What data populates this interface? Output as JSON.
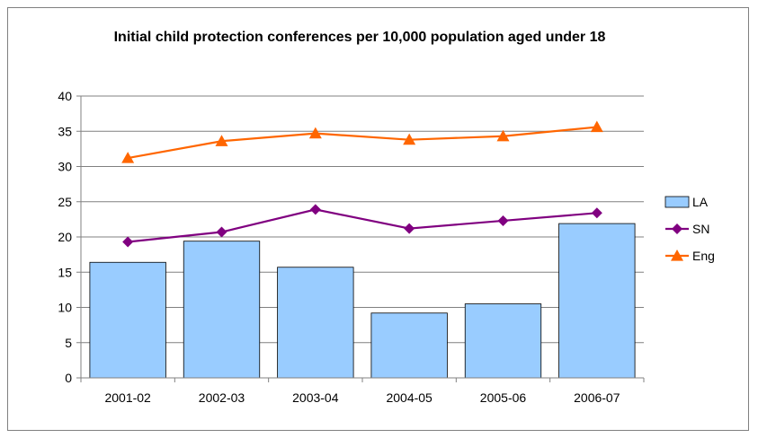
{
  "chart_data": {
    "type": "bar",
    "title": "Initial child protection conferences per 10,000 population aged under 18",
    "categories": [
      "2001-02",
      "2002-03",
      "2003-04",
      "2004-05",
      "2005-06",
      "2006-07"
    ],
    "ylim": [
      0,
      40
    ],
    "yticks": [
      "0",
      "5",
      "10",
      "15",
      "20",
      "25",
      "30",
      "35",
      "40"
    ],
    "grid": true,
    "legend_position": "right",
    "series": [
      {
        "name": "LA",
        "kind": "bar",
        "color": "#99ccff",
        "values": [
          16.4,
          19.4,
          15.7,
          9.2,
          10.5,
          21.9
        ]
      },
      {
        "name": "SN",
        "kind": "line",
        "marker": "diamond",
        "color": "#800080",
        "values": [
          19.3,
          20.7,
          23.9,
          21.2,
          22.3,
          23.4
        ]
      },
      {
        "name": "Eng",
        "kind": "line",
        "marker": "triangle",
        "color": "#ff6600",
        "values": [
          31.2,
          33.6,
          34.7,
          33.8,
          34.3,
          35.6
        ]
      }
    ]
  }
}
